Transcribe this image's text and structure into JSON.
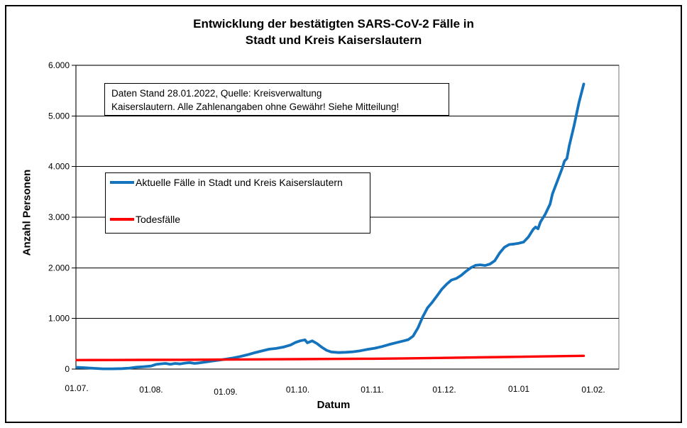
{
  "title": {
    "line1": "Entwicklung der bestätigten SARS-CoV-2 Fälle in",
    "line2": "Stadt und Kreis Kaiserslautern"
  },
  "annotation": {
    "line1": "Daten Stand 28.01.2022, Quelle: Kreisverwaltung",
    "line2": "Kaiserslautern. Alle Zahlenangaben ohne Gewähr! Siehe Mitteilung!"
  },
  "legend": {
    "items": [
      {
        "label": "Aktuelle Fälle in Stadt und Kreis Kaiserslautern",
        "color": "#1473BD"
      },
      {
        "label": "Todesfälle",
        "color": "#FE0000"
      }
    ]
  },
  "axes": {
    "y_title": "Anzahl Personen",
    "x_title": "Datum"
  },
  "chart_data": {
    "type": "line",
    "title": "Entwicklung der bestätigten SARS-CoV-2 Fälle in Stadt und Kreis Kaiserslautern",
    "xlabel": "Datum",
    "ylabel": "Anzahl Personen",
    "ylim": [
      0,
      6000
    ],
    "grid": true,
    "legend_position": "inside-top-left",
    "y_tick_labels": [
      "0",
      "1.000",
      "2.000",
      "3.000",
      "4.000",
      "5.000",
      "6.000"
    ],
    "x_tick_labels": [
      "01.07.",
      "01.08.",
      "01.09.",
      "01.10.",
      "01.11.",
      "01.12.",
      "01.01",
      "01.02."
    ],
    "series": [
      {
        "name": "Aktuelle Fälle in Stadt und Kreis Kaiserslautern",
        "color": "#1473BD",
        "points": [
          [
            "01.07.2021",
            35
          ],
          [
            "04.07.2021",
            28
          ],
          [
            "08.07.2021",
            15
          ],
          [
            "12.07.2021",
            6
          ],
          [
            "16.07.2021",
            5
          ],
          [
            "20.07.2021",
            10
          ],
          [
            "23.07.2021",
            20
          ],
          [
            "26.07.2021",
            38
          ],
          [
            "29.07.2021",
            48
          ],
          [
            "01.08.2021",
            60
          ],
          [
            "03.08.2021",
            92
          ],
          [
            "05.08.2021",
            104
          ],
          [
            "07.08.2021",
            112
          ],
          [
            "09.08.2021",
            96
          ],
          [
            "11.08.2021",
            112
          ],
          [
            "13.08.2021",
            102
          ],
          [
            "15.08.2021",
            118
          ],
          [
            "17.08.2021",
            128
          ],
          [
            "19.08.2021",
            112
          ],
          [
            "21.08.2021",
            122
          ],
          [
            "24.08.2021",
            142
          ],
          [
            "27.08.2021",
            162
          ],
          [
            "30.08.2021",
            182
          ],
          [
            "01.09.2021",
            196
          ],
          [
            "04.09.2021",
            218
          ],
          [
            "07.09.2021",
            248
          ],
          [
            "10.09.2021",
            282
          ],
          [
            "13.09.2021",
            322
          ],
          [
            "16.09.2021",
            358
          ],
          [
            "19.09.2021",
            392
          ],
          [
            "22.09.2021",
            408
          ],
          [
            "25.09.2021",
            435
          ],
          [
            "28.09.2021",
            475
          ],
          [
            "30.09.2021",
            525
          ],
          [
            "02.10.2021",
            558
          ],
          [
            "04.10.2021",
            578
          ],
          [
            "05.10.2021",
            518
          ],
          [
            "07.10.2021",
            558
          ],
          [
            "09.10.2021",
            505
          ],
          [
            "11.10.2021",
            432
          ],
          [
            "13.10.2021",
            372
          ],
          [
            "15.10.2021",
            338
          ],
          [
            "18.10.2021",
            326
          ],
          [
            "21.10.2021",
            332
          ],
          [
            "24.10.2021",
            342
          ],
          [
            "27.10.2021",
            362
          ],
          [
            "30.10.2021",
            388
          ],
          [
            "02.11.2021",
            412
          ],
          [
            "05.11.2021",
            445
          ],
          [
            "08.11.2021",
            485
          ],
          [
            "11.11.2021",
            522
          ],
          [
            "14.11.2021",
            556
          ],
          [
            "16.11.2021",
            582
          ],
          [
            "18.11.2021",
            650
          ],
          [
            "20.11.2021",
            810
          ],
          [
            "22.11.2021",
            1030
          ],
          [
            "24.11.2021",
            1210
          ],
          [
            "26.11.2021",
            1320
          ],
          [
            "28.11.2021",
            1450
          ],
          [
            "30.11.2021",
            1580
          ],
          [
            "02.12.2021",
            1680
          ],
          [
            "04.12.2021",
            1760
          ],
          [
            "06.12.2021",
            1790
          ],
          [
            "08.12.2021",
            1850
          ],
          [
            "10.12.2021",
            1930
          ],
          [
            "12.12.2021",
            2000
          ],
          [
            "14.12.2021",
            2050
          ],
          [
            "16.12.2021",
            2060
          ],
          [
            "18.12.2021",
            2045
          ],
          [
            "20.12.2021",
            2075
          ],
          [
            "22.12.2021",
            2140
          ],
          [
            "24.12.2021",
            2290
          ],
          [
            "26.12.2021",
            2405
          ],
          [
            "28.12.2021",
            2460
          ],
          [
            "30.12.2021",
            2470
          ],
          [
            "01.01.2022",
            2485
          ],
          [
            "03.01.2022",
            2510
          ],
          [
            "05.01.2022",
            2610
          ],
          [
            "07.01.2022",
            2760
          ],
          [
            "08.01.2022",
            2805
          ],
          [
            "09.01.2022",
            2770
          ],
          [
            "10.01.2022",
            2905
          ],
          [
            "12.01.2022",
            3060
          ],
          [
            "14.01.2022",
            3260
          ],
          [
            "15.01.2022",
            3460
          ],
          [
            "17.01.2022",
            3710
          ],
          [
            "19.01.2022",
            3960
          ],
          [
            "20.01.2022",
            4110
          ],
          [
            "21.01.2022",
            4160
          ],
          [
            "22.01.2022",
            4410
          ],
          [
            "24.01.2022",
            4810
          ],
          [
            "26.01.2022",
            5260
          ],
          [
            "28.01.2022",
            5630
          ]
        ]
      },
      {
        "name": "Todesfälle",
        "color": "#FE0000",
        "points": [
          [
            "01.07.2021",
            178
          ],
          [
            "15.07.2021",
            180
          ],
          [
            "01.08.2021",
            182
          ],
          [
            "15.08.2021",
            184
          ],
          [
            "01.09.2021",
            188
          ],
          [
            "15.09.2021",
            192
          ],
          [
            "01.10.2021",
            196
          ],
          [
            "15.10.2021",
            200
          ],
          [
            "01.11.2021",
            205
          ],
          [
            "15.11.2021",
            212
          ],
          [
            "01.12.2021",
            222
          ],
          [
            "15.12.2021",
            232
          ],
          [
            "01.01.2022",
            243
          ],
          [
            "10.01.2022",
            250
          ],
          [
            "20.01.2022",
            256
          ],
          [
            "28.01.2022",
            262
          ]
        ]
      }
    ]
  }
}
